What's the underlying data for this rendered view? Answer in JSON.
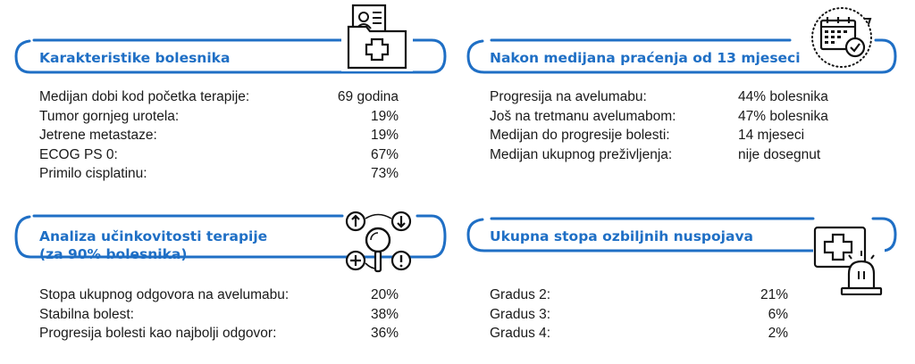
{
  "panels": {
    "characteristics": {
      "title": "Karakteristike bolesnika",
      "icon": "patient-folder-icon",
      "rows": [
        {
          "label": "Medijan dobi kod početka terapije:",
          "value": "69 godina"
        },
        {
          "label": "Tumor gornjeg urotela:",
          "value": "19%"
        },
        {
          "label": "Jetrene metastaze:",
          "value": "19%"
        },
        {
          "label": "ECOG PS 0:",
          "value": "67%"
        },
        {
          "label": "Primilo cisplatinu:",
          "value": "73%"
        }
      ]
    },
    "followup": {
      "title": "Nakon medijana praćenja od 13 mjeseci",
      "icon": "calendar-check-icon",
      "rows": [
        {
          "label": "Progresija na avelumabu:",
          "value": "44% bolesnika"
        },
        {
          "label": "Još na tretmanu avelumabom:",
          "value": "47% bolesnika"
        },
        {
          "label": "Medijan do progresije bolesti:",
          "value": "14 mjeseci"
        },
        {
          "label": "Medijan ukupnog preživljenja:",
          "value": "nije dosegnut"
        }
      ]
    },
    "efficacy": {
      "title_line1": "Analiza učinkovitosti terapije",
      "title_line2": "(za 90% bolesnika)",
      "icon": "analysis-magnifier-icon",
      "rows": [
        {
          "label": "Stopa ukupnog odgovora na avelumabu:",
          "value": "20%"
        },
        {
          "label": "Stabilna bolest:",
          "value": "38%"
        },
        {
          "label": "Progresija bolesti kao najbolji odgovor:",
          "value": "36%"
        }
      ]
    },
    "adverse": {
      "title": "Ukupna stopa ozbiljnih nuspojava",
      "icon": "medical-alert-icon",
      "rows": [
        {
          "label": "Gradus 2:",
          "value": "21%"
        },
        {
          "label": "Gradus 3:",
          "value": "6%"
        },
        {
          "label": "Gradus 4:",
          "value": "2%"
        }
      ]
    }
  },
  "colors": {
    "accent": "#1f6fc5",
    "text": "#1a1a1a"
  }
}
